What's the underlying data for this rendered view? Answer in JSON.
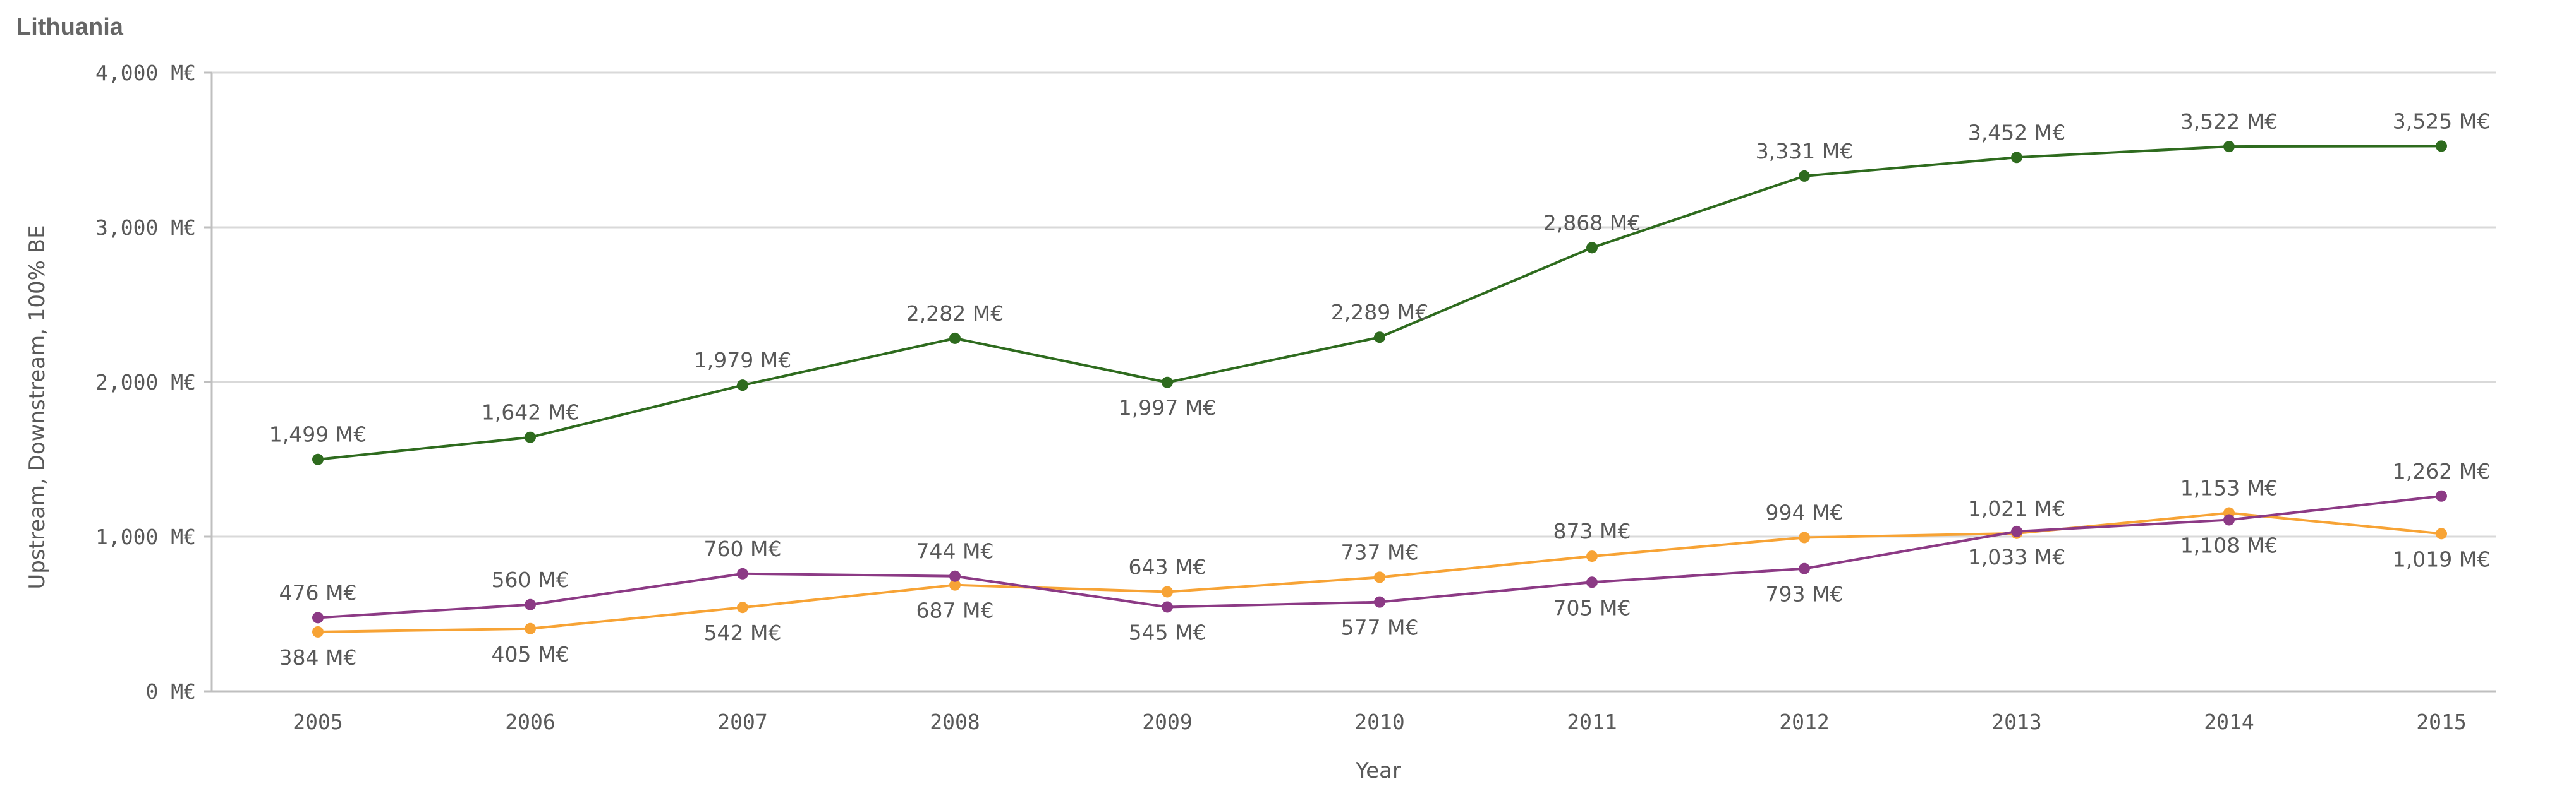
{
  "chart_data": {
    "type": "line",
    "title": "Lithuania",
    "xlabel": "Year",
    "ylabel": "Upstream, Downstream, 100% BE",
    "x": [
      "2005",
      "2006",
      "2007",
      "2008",
      "2009",
      "2010",
      "2011",
      "2012",
      "2013",
      "2014",
      "2015"
    ],
    "ylim": [
      0,
      4000
    ],
    "yticks": [
      0,
      1000,
      2000,
      3000,
      4000
    ],
    "ytick_labels": [
      "0 M€",
      "1,000 M€",
      "2,000 M€",
      "3,000 M€",
      "4,000 M€"
    ],
    "grid": true,
    "series": [
      {
        "color": "#2e6b1e",
        "values": [
          1499,
          1642,
          1979,
          2282,
          1997,
          2289,
          2868,
          3331,
          3452,
          3522,
          3525
        ],
        "labels": [
          "1,499 M€",
          "1,642 M€",
          "1,979 M€",
          "2,282 M€",
          "1,997 M€",
          "2,289 M€",
          "2,868 M€",
          "3,331 M€",
          "3,452 M€",
          "3,522 M€",
          "3,525 M€"
        ],
        "label_pos": [
          "above",
          "above",
          "above",
          "above",
          "below",
          "above",
          "above",
          "above",
          "above",
          "above",
          "above"
        ]
      },
      {
        "color": "#f7a335",
        "values": [
          384,
          405,
          542,
          687,
          643,
          737,
          873,
          994,
          1021,
          1153,
          1019
        ],
        "labels": [
          "384 M€",
          "405 M€",
          "542 M€",
          "687 M€",
          "643 M€",
          "737 M€",
          "873 M€",
          "994 M€",
          "1,021 M€",
          "1,153 M€",
          "1,019 M€"
        ],
        "label_pos": [
          "below",
          "below",
          "below",
          "below",
          "above",
          "above",
          "above",
          "above",
          "above",
          "above",
          "below"
        ]
      },
      {
        "color": "#8c3a85",
        "values": [
          476,
          560,
          760,
          744,
          545,
          577,
          705,
          793,
          1033,
          1108,
          1262
        ],
        "labels": [
          "476 M€",
          "560 M€",
          "760 M€",
          "744 M€",
          "545 M€",
          "577 M€",
          "705 M€",
          "793 M€",
          "1,033 M€",
          "1,108 M€",
          "1,262 M€"
        ],
        "label_pos": [
          "above",
          "above",
          "above",
          "above",
          "below",
          "below",
          "below",
          "below",
          "below",
          "below",
          "above"
        ]
      }
    ]
  }
}
